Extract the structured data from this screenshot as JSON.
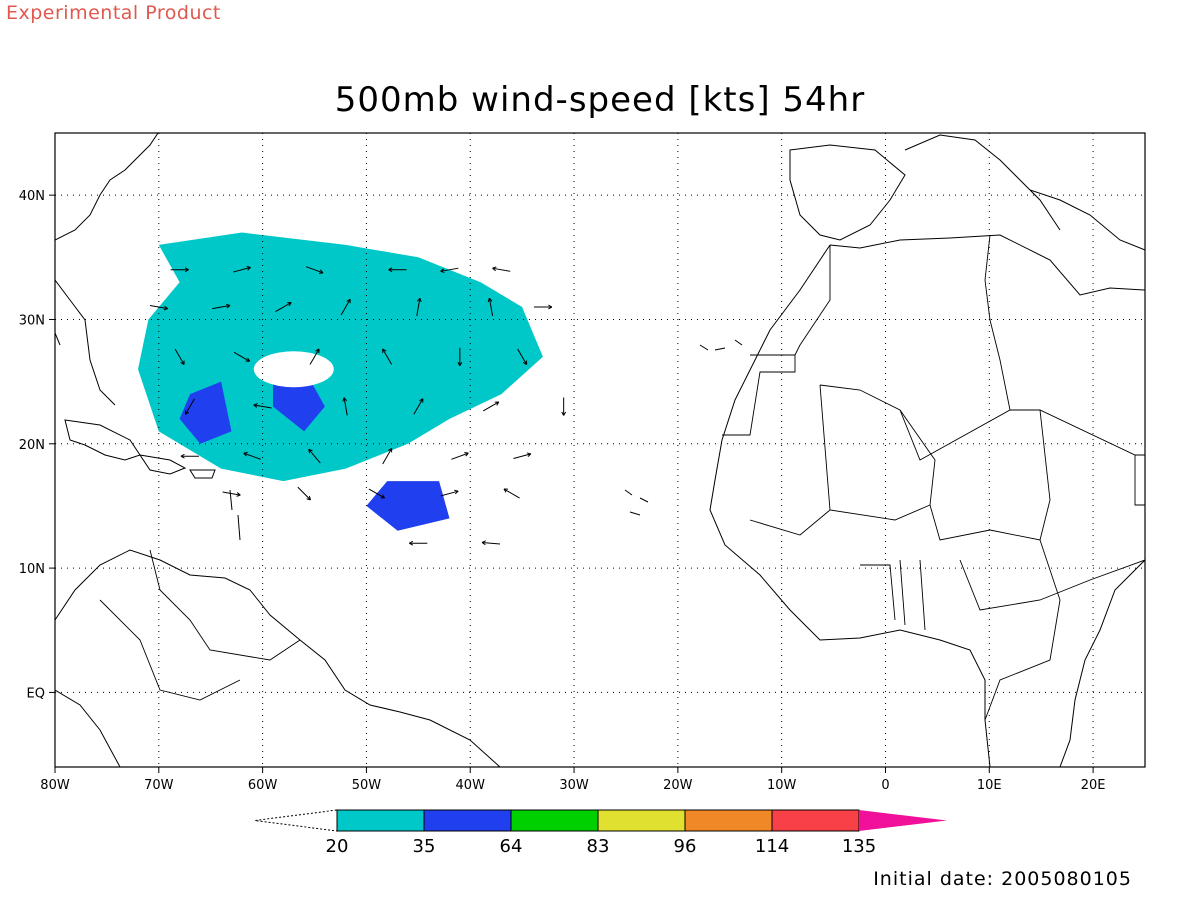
{
  "banner": {
    "text": "Experimental Product",
    "color": "#e0584e"
  },
  "title": "500mb wind-speed [kts] 54hr",
  "footer": {
    "initial_date": "Initial date: 2005080105"
  },
  "map": {
    "lon_range": [
      -80,
      25
    ],
    "lat_range": [
      -6,
      45
    ],
    "x_ticks": [
      {
        "lon": -80,
        "label": "80W"
      },
      {
        "lon": -70,
        "label": "70W"
      },
      {
        "lon": -60,
        "label": "60W"
      },
      {
        "lon": -50,
        "label": "50W"
      },
      {
        "lon": -40,
        "label": "40W"
      },
      {
        "lon": -30,
        "label": "30W"
      },
      {
        "lon": -20,
        "label": "20W"
      },
      {
        "lon": -10,
        "label": "10W"
      },
      {
        "lon": 0,
        "label": "0"
      },
      {
        "lon": 10,
        "label": "10E"
      },
      {
        "lon": 20,
        "label": "20E"
      }
    ],
    "y_ticks": [
      {
        "lat": 40,
        "label": "40N"
      },
      {
        "lat": 30,
        "label": "30N"
      },
      {
        "lat": 20,
        "label": "20N"
      },
      {
        "lat": 10,
        "label": "10N"
      },
      {
        "lat": 0,
        "label": "EQ"
      }
    ],
    "gridlines": "dotted"
  },
  "colorbar": {
    "segments": [
      {
        "color": "#00c8c8"
      },
      {
        "color": "#2040f0"
      },
      {
        "color": "#00d000"
      },
      {
        "color": "#e0e030"
      },
      {
        "color": "#f08828"
      },
      {
        "color": "#f84048"
      }
    ],
    "over_color": "#f0109a",
    "under_color": "#ffffff",
    "labels": [
      "20",
      "35",
      "64",
      "83",
      "96",
      "114",
      "135"
    ]
  },
  "chart_data": {
    "type": "heatmap",
    "title": "500mb wind-speed [kts] 54hr",
    "levels": [
      20,
      35,
      64,
      83,
      96,
      114,
      135
    ],
    "xlim": [
      -80,
      25
    ],
    "ylim": [
      -6,
      45
    ],
    "shaded_regions": [
      {
        "level": "20-35",
        "color": "#00c8c8",
        "lonlat": [
          [
            -70,
            36
          ],
          [
            -62,
            37
          ],
          [
            -52,
            36
          ],
          [
            -45,
            35
          ],
          [
            -39,
            33
          ],
          [
            -35,
            31
          ],
          [
            -33,
            27
          ],
          [
            -37,
            24
          ],
          [
            -42,
            22
          ],
          [
            -46,
            20
          ],
          [
            -52,
            18
          ],
          [
            -58,
            17
          ],
          [
            -64,
            18
          ],
          [
            -70,
            21
          ],
          [
            -72,
            26
          ],
          [
            -71,
            30
          ],
          [
            -68,
            33
          ],
          [
            -70,
            36
          ]
        ]
      },
      {
        "level": "35-64",
        "color": "#2040f0",
        "lonlat": [
          [
            -59,
            26
          ],
          [
            -56,
            26
          ],
          [
            -54,
            23
          ],
          [
            -56,
            21
          ],
          [
            -59,
            23
          ],
          [
            -59,
            26
          ]
        ]
      },
      {
        "level": "35-64",
        "color": "#2040f0",
        "lonlat": [
          [
            -67,
            24
          ],
          [
            -64,
            25
          ],
          [
            -63,
            21
          ],
          [
            -66,
            20
          ],
          [
            -68,
            22
          ],
          [
            -67,
            24
          ]
        ]
      },
      {
        "level": "35-64",
        "color": "#2040f0",
        "lonlat": [
          [
            -48,
            17
          ],
          [
            -43,
            17
          ],
          [
            -42,
            14
          ],
          [
            -47,
            13
          ],
          [
            -50,
            15
          ],
          [
            -48,
            17
          ]
        ]
      }
    ]
  }
}
